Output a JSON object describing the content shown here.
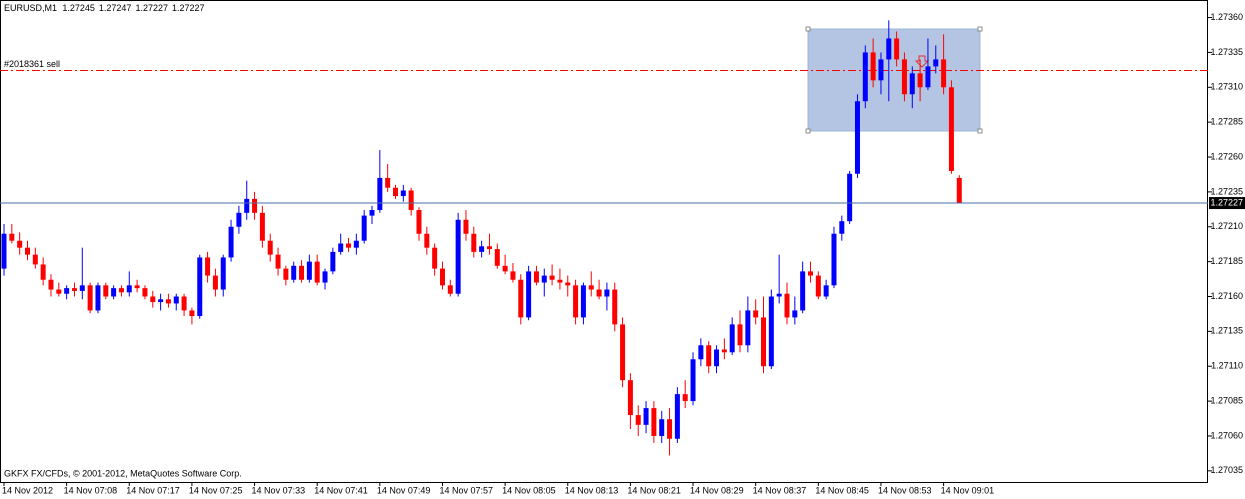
{
  "chart_data": {
    "type": "candlestick",
    "title": "EURUSD,M1",
    "footer": "GKFX FX/CFDs, © 2001-2012, MetaQuotes Software Corp.",
    "bull_color": "#0000ff",
    "bear_color": "#ff0000",
    "bid_color": "#4a6fa5",
    "order_line": {
      "label": "#2018361 sell",
      "price": 1.27322,
      "color": "#ff0000"
    },
    "ylim": [
      1.27027,
      1.27369
    ],
    "yticks": [
      {
        "value": 1.2736,
        "label": "1.27360"
      },
      1.27335,
      {
        "value": 1.2731,
        "label": "1.27310"
      },
      1.27285,
      {
        "value": 1.2726,
        "label": "1.27260"
      },
      1.27235,
      {
        "value": 1.2721,
        "label": "1.27210"
      },
      1.27185,
      {
        "value": 1.2716,
        "label": "1.27160"
      },
      1.27135,
      {
        "value": 1.2711,
        "label": "1.27110"
      },
      1.27085,
      {
        "value": 1.2706,
        "label": "1.27060"
      },
      1.27035
    ],
    "categories": [
      "14 Nov 2012",
      null,
      null,
      null,
      null,
      null,
      null,
      null,
      "14 Nov 07:08",
      null,
      null,
      null,
      null,
      null,
      null,
      null,
      "14 Nov 07:17",
      null,
      null,
      null,
      null,
      null,
      null,
      null,
      "14 Nov 07:25",
      null,
      null,
      null,
      null,
      null,
      null,
      null,
      "14 Nov 07:33",
      null,
      null,
      null,
      null,
      null,
      null,
      null,
      "14 Nov 07:41",
      null,
      null,
      null,
      null,
      null,
      null,
      null,
      "14 Nov 07:49",
      null,
      null,
      null,
      null,
      null,
      null,
      null,
      "14 Nov 07:57",
      null,
      null,
      null,
      null,
      null,
      null,
      null,
      "14 Nov 08:05",
      null,
      null,
      null,
      null,
      null,
      null,
      null,
      "14 Nov 08:13",
      null,
      null,
      null,
      null,
      null,
      null,
      null,
      "14 Nov 08:21",
      null,
      null,
      null,
      null,
      null,
      null,
      null,
      "14 Nov 08:29",
      null,
      null,
      null,
      null,
      null,
      null,
      null,
      "14 Nov 08:37",
      null,
      null,
      null,
      null,
      null,
      null,
      null,
      "14 Nov 08:45",
      null,
      null,
      null,
      null,
      null,
      null,
      null,
      "14 Nov 08:53",
      null,
      null,
      null,
      null,
      null,
      null,
      null,
      "14 Nov 09:01",
      null,
      null
    ],
    "open": [
      1.2718,
      1.27205,
      1.272,
      1.27195,
      1.2719,
      1.27183,
      1.27172,
      1.27165,
      1.27162,
      1.27166,
      1.27164,
      1.27168,
      1.2715,
      1.27168,
      1.2716,
      1.27166,
      1.27163,
      1.27168,
      1.27166,
      1.2716,
      1.27156,
      1.27158,
      1.27155,
      1.2716,
      1.2715,
      1.27146,
      1.27188,
      1.27175,
      1.27165,
      1.27188,
      1.2721,
      1.2722,
      1.2723,
      1.2722,
      1.272,
      1.2719,
      1.2718,
      1.27172,
      1.27182,
      1.27172,
      1.27185,
      1.2717,
      1.27178,
      1.27192,
      1.27198,
      1.27195,
      1.272,
      1.27218,
      1.27222,
      1.27245,
      1.27238,
      1.27232,
      1.27236,
      1.27222,
      1.27205,
      1.27195,
      1.2718,
      1.27168,
      1.27162,
      1.27215,
      1.27205,
      1.27192,
      1.27196,
      1.27194,
      1.27182,
      1.27178,
      1.27172,
      1.27145,
      1.27178,
      1.2717,
      1.27175,
      1.27172,
      1.2717,
      1.27168,
      1.27145,
      1.27168,
      1.27165,
      1.2716,
      1.27165,
      1.2714,
      1.271,
      1.27075,
      1.27068,
      1.2708,
      1.2706,
      1.27072,
      1.27058,
      1.2709,
      1.27085,
      1.27115,
      1.27125,
      1.2711,
      1.27122,
      1.2712,
      1.2714,
      1.27125,
      1.2715,
      1.27145,
      1.2711,
      1.2716,
      1.27162,
      1.27145,
      1.2715,
      1.27178,
      1.27175,
      1.2716,
      1.27168,
      1.27205,
      1.27214,
      1.27248,
      1.273,
      1.27335,
      1.27315,
      1.2733,
      1.27345,
      1.2733,
      1.27305,
      1.2732,
      1.2731,
      1.27325,
      1.2733,
      1.2731,
      1.27245
    ],
    "high": [
      1.27212,
      1.27212,
      1.27206,
      1.272,
      1.27195,
      1.27188,
      1.27176,
      1.2717,
      1.27168,
      1.2717,
      1.27195,
      1.2717,
      1.2717,
      1.2717,
      1.27168,
      1.27168,
      1.27178,
      1.27172,
      1.27168,
      1.27164,
      1.27162,
      1.27162,
      1.27162,
      1.27162,
      1.27152,
      1.2719,
      1.27192,
      1.2718,
      1.2719,
      1.27215,
      1.27225,
      1.27243,
      1.27235,
      1.27225,
      1.27205,
      1.27195,
      1.27182,
      1.27185,
      1.27186,
      1.2719,
      1.2719,
      1.2718,
      1.27195,
      1.27205,
      1.27202,
      1.27205,
      1.27222,
      1.27225,
      1.27265,
      1.27255,
      1.2724,
      1.2724,
      1.27238,
      1.27224,
      1.2721,
      1.27198,
      1.27185,
      1.27172,
      1.2722,
      1.27222,
      1.2721,
      1.272,
      1.27205,
      1.27198,
      1.2719,
      1.27184,
      1.27176,
      1.27182,
      1.27182,
      1.2718,
      1.27183,
      1.2718,
      1.27175,
      1.27172,
      1.2717,
      1.27178,
      1.27172,
      1.2717,
      1.2717,
      1.27145,
      1.27105,
      1.27082,
      1.27085,
      1.27085,
      1.27078,
      1.2708,
      1.27095,
      1.271,
      1.2712,
      1.2713,
      1.27128,
      1.27125,
      1.2713,
      1.27145,
      1.2715,
      1.2716,
      1.27158,
      1.2716,
      1.27165,
      1.2719,
      1.2717,
      1.2716,
      1.27185,
      1.27185,
      1.27178,
      1.27172,
      1.2721,
      1.27218,
      1.2725,
      1.27305,
      1.2734,
      1.27345,
      1.27335,
      1.27358,
      1.2735,
      1.27335,
      1.27325,
      1.2733,
      1.27345,
      1.2734,
      1.27348,
      1.27315,
      1.27247
    ],
    "low": [
      1.27175,
      1.27198,
      1.2719,
      1.27186,
      1.2718,
      1.27168,
      1.2716,
      1.2716,
      1.27158,
      1.2716,
      1.27158,
      1.27148,
      1.27148,
      1.27158,
      1.27158,
      1.2716,
      1.2716,
      1.27163,
      1.27158,
      1.27152,
      1.2715,
      1.27152,
      1.2715,
      1.27146,
      1.2714,
      1.27144,
      1.2717,
      1.2716,
      1.2716,
      1.27185,
      1.27205,
      1.27215,
      1.27215,
      1.27195,
      1.27185,
      1.27175,
      1.27168,
      1.2717,
      1.2717,
      1.2717,
      1.27168,
      1.27165,
      1.27176,
      1.2719,
      1.27192,
      1.2719,
      1.27198,
      1.27212,
      1.2722,
      1.27235,
      1.2723,
      1.27228,
      1.27218,
      1.272,
      1.2719,
      1.27175,
      1.27165,
      1.2716,
      1.2716,
      1.272,
      1.27188,
      1.27188,
      1.2719,
      1.2718,
      1.27176,
      1.2717,
      1.2714,
      1.27143,
      1.27168,
      1.2716,
      1.27168,
      1.27165,
      1.2716,
      1.2714,
      1.2714,
      1.2716,
      1.27158,
      1.2715,
      1.27135,
      1.27095,
      1.27065,
      1.2706,
      1.27062,
      1.27055,
      1.27055,
      1.27046,
      1.27055,
      1.2708,
      1.27082,
      1.2711,
      1.27105,
      1.27105,
      1.27115,
      1.27118,
      1.2712,
      1.2712,
      1.2714,
      1.27105,
      1.27108,
      1.27155,
      1.2714,
      1.2714,
      1.27148,
      1.2717,
      1.27158,
      1.27158,
      1.27166,
      1.272,
      1.27212,
      1.27245,
      1.27295,
      1.2731,
      1.27305,
      1.273,
      1.27325,
      1.273,
      1.27295,
      1.273,
      1.27308,
      1.2732,
      1.27305,
      1.27248,
      1.27227
    ],
    "close": [
      1.27205,
      1.272,
      1.27195,
      1.2719,
      1.27183,
      1.27172,
      1.27165,
      1.27162,
      1.27166,
      1.27164,
      1.27168,
      1.2715,
      1.27168,
      1.2716,
      1.27166,
      1.27163,
      1.27168,
      1.27166,
      1.2716,
      1.27156,
      1.27158,
      1.27155,
      1.2716,
      1.2715,
      1.27146,
      1.27188,
      1.27175,
      1.27165,
      1.27188,
      1.2721,
      1.2722,
      1.2723,
      1.2722,
      1.272,
      1.2719,
      1.2718,
      1.27172,
      1.27182,
      1.27172,
      1.27185,
      1.2717,
      1.27178,
      1.27192,
      1.27198,
      1.27195,
      1.272,
      1.27218,
      1.27222,
      1.27245,
      1.27238,
      1.27232,
      1.27236,
      1.27222,
      1.27205,
      1.27195,
      1.2718,
      1.27168,
      1.27162,
      1.27215,
      1.27205,
      1.27192,
      1.27196,
      1.27194,
      1.27182,
      1.27178,
      1.27172,
      1.27145,
      1.27178,
      1.2717,
      1.27175,
      1.27172,
      1.2717,
      1.27168,
      1.27145,
      1.27168,
      1.27165,
      1.2716,
      1.27165,
      1.2714,
      1.271,
      1.27075,
      1.27068,
      1.2708,
      1.2706,
      1.27072,
      1.27058,
      1.2709,
      1.27085,
      1.27115,
      1.27125,
      1.2711,
      1.27122,
      1.2712,
      1.2714,
      1.27125,
      1.2715,
      1.27145,
      1.2711,
      1.2716,
      1.27162,
      1.27145,
      1.2715,
      1.27178,
      1.27175,
      1.2716,
      1.27168,
      1.27205,
      1.27214,
      1.27248,
      1.273,
      1.27335,
      1.27315,
      1.2733,
      1.27345,
      1.2733,
      1.27305,
      1.2732,
      1.2731,
      1.27325,
      1.2733,
      1.2731,
      1.2725,
      1.27227
    ]
  }
}
